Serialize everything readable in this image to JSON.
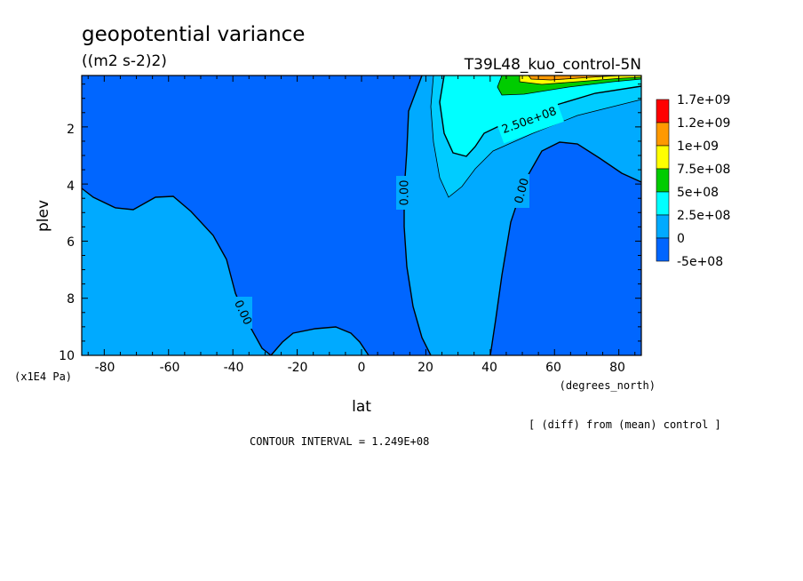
{
  "chart_data": {
    "type": "contour",
    "title": "geopotential variance",
    "units": "((m2 s-2)2)",
    "experiment": "T39L48_kuo_control-5N",
    "xlabel": "lat",
    "xunits": "(degrees_north)",
    "ylabel": "plev",
    "yunits": "(x1E4 Pa)",
    "xlim": [
      -87,
      87
    ],
    "ylim": [
      10,
      0.2
    ],
    "xticks": [
      "-80",
      "-60",
      "-40",
      "-20",
      "0",
      "20",
      "40",
      "60",
      "80"
    ],
    "yticks": [
      "2",
      "4",
      "6",
      "8",
      "10"
    ],
    "note": "[ (diff) from (mean) control ]",
    "contour_interval": "CONTOUR INTERVAL = 1.249E+08",
    "contour_labels": [
      "0.00",
      "0.00",
      "0.00",
      "2.50e+08"
    ],
    "legend": {
      "labels": [
        "1.7e+09",
        "1.2e+09",
        "1e+09",
        "7.5e+08",
        "5e+08",
        "2.5e+08",
        "0",
        "-5e+08"
      ],
      "colors": [
        "#ff0000",
        "#ff9900",
        "#ffff00",
        "#00cc00",
        "#00ffff",
        "#00aaff",
        "#0066ff"
      ]
    },
    "regions": {
      "negative": "#0066ff",
      "zero_to_125e6": "#00aaff",
      "125e6_to_250e6": "#00ccff",
      "250e6_to_500e6": "#00ffff",
      "500e6_to_750e6": "#00cc00",
      "750e6_to_1e9": "#ffff00",
      "1e9_to_1_2e9": "#ff9900"
    }
  }
}
